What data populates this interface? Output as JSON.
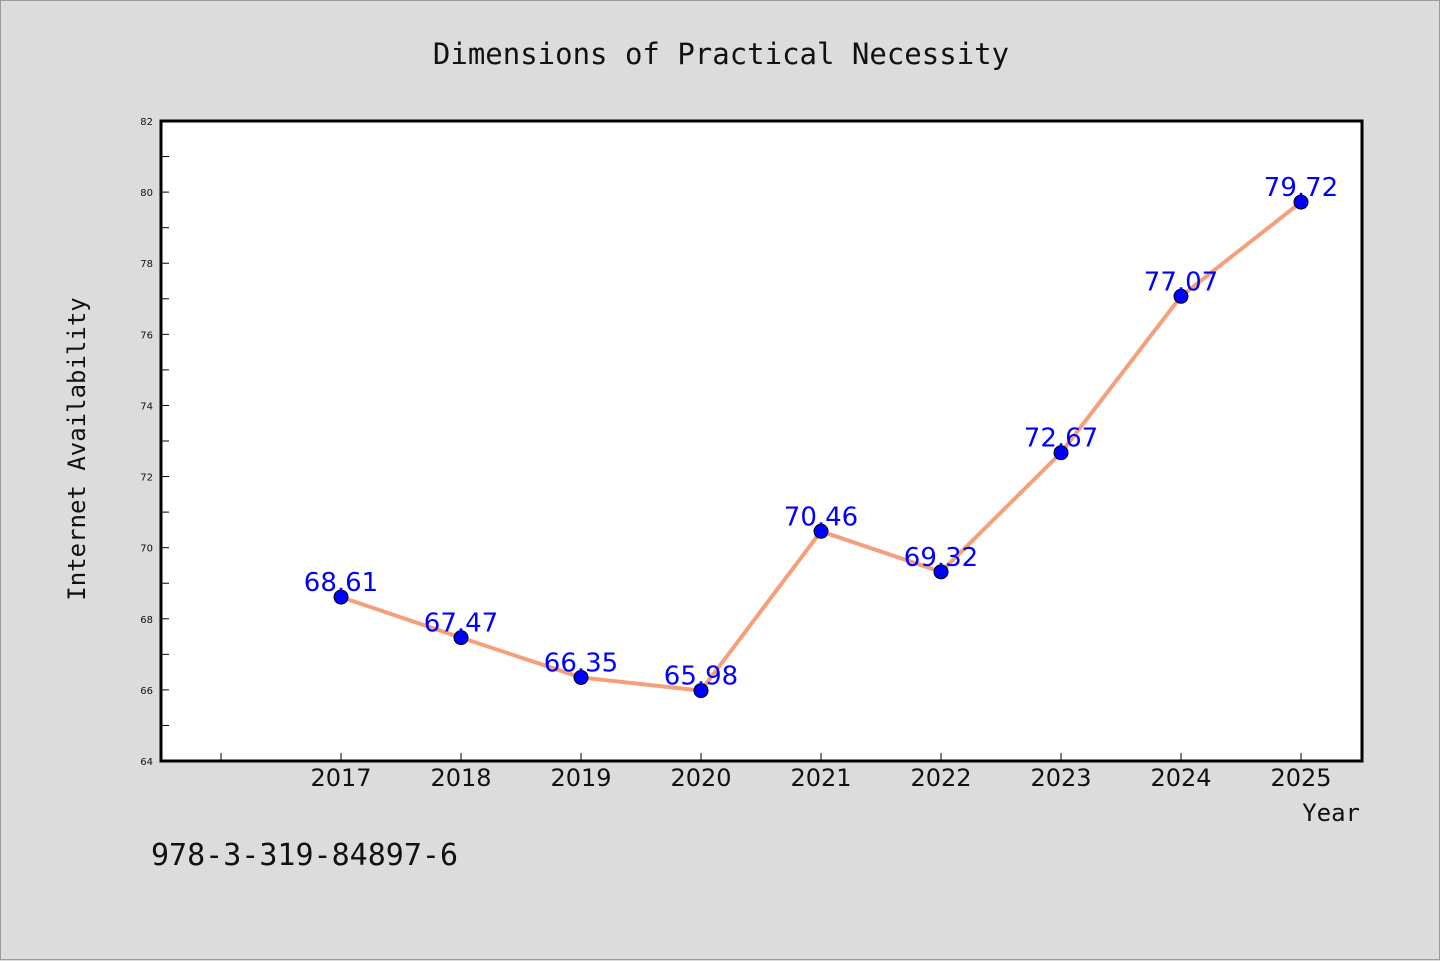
{
  "chart_data": {
    "type": "line",
    "title": "Dimensions of Practical Necessity",
    "xlabel": "Year",
    "ylabel": "Internet Availability",
    "categories": [
      "2017",
      "2018",
      "2019",
      "2020",
      "2021",
      "2022",
      "2023",
      "2024",
      "2025"
    ],
    "series": [
      {
        "values": [
          68.61,
          67.47,
          66.35,
          65.98,
          70.46,
          69.32,
          72.67,
          77.07,
          79.72
        ],
        "labels": [
          "68.61",
          "67.47",
          "66.35",
          "65.98",
          "70.46",
          "69.32",
          "72.67",
          "77.07",
          "79.72"
        ],
        "line_color": "#f4a07a",
        "marker_color": "#0000ff",
        "label_color": "#0000ff"
      }
    ],
    "ylim": [
      64,
      82
    ],
    "yticks": [
      "64",
      "66",
      "68",
      "70",
      "72",
      "74",
      "76",
      "78",
      "80",
      "82"
    ],
    "grid": false,
    "legend": "none"
  },
  "watermark": "978-3-319-84897-6"
}
